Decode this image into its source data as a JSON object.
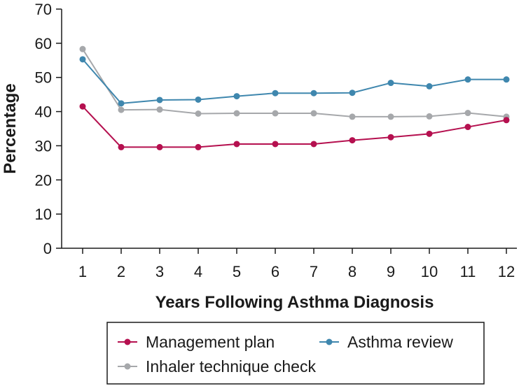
{
  "chart_data": {
    "type": "line",
    "title": "",
    "xlabel": "Years Following Asthma Diagnosis",
    "ylabel": "Percentage",
    "x": [
      1,
      2,
      3,
      4,
      5,
      6,
      7,
      8,
      9,
      10,
      11,
      12
    ],
    "x_tick_labels": [
      "1",
      "2",
      "3",
      "4",
      "5",
      "6",
      "7",
      "8",
      "9",
      "10",
      "11",
      "12"
    ],
    "ylim": [
      0,
      70
    ],
    "y_ticks": [
      0,
      10,
      20,
      30,
      40,
      50,
      60,
      70
    ],
    "y_tick_labels": [
      "0",
      "10",
      "20",
      "30",
      "40",
      "50",
      "60",
      "70"
    ],
    "grid": false,
    "legend_position": "bottom",
    "series": [
      {
        "name": "Management plan",
        "color": "#b5104f",
        "values": [
          41.5,
          29.6,
          29.6,
          29.6,
          30.5,
          30.5,
          30.5,
          31.6,
          32.5,
          33.5,
          35.5,
          37.5
        ]
      },
      {
        "name": "Asthma review",
        "color": "#3f87ae",
        "values": [
          55.3,
          42.4,
          43.4,
          43.5,
          44.5,
          45.4,
          45.4,
          45.5,
          48.4,
          47.4,
          49.4,
          49.4
        ]
      },
      {
        "name": "Inhaler technique check",
        "color": "#a6a8ab",
        "values": [
          58.3,
          40.5,
          40.6,
          39.4,
          39.5,
          39.5,
          39.5,
          38.5,
          38.5,
          38.6,
          39.6,
          38.5
        ]
      }
    ]
  }
}
